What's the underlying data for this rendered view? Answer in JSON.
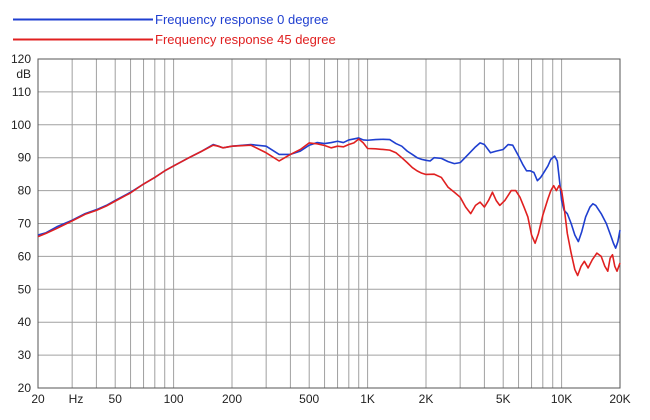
{
  "chart_data": {
    "type": "line",
    "title": "",
    "xlabel": "",
    "ylabel": "dB",
    "x_unit_label": "Hz",
    "x_scale": "log",
    "xlim": [
      20,
      20000
    ],
    "ylim": [
      20,
      120
    ],
    "grid": true,
    "legend_position": "top-left",
    "x_tick_labels": [
      {
        "value": 20,
        "label": "20"
      },
      {
        "value": 50,
        "label": "50"
      },
      {
        "value": 100,
        "label": "100"
      },
      {
        "value": 200,
        "label": "200"
      },
      {
        "value": 500,
        "label": "500"
      },
      {
        "value": 1000,
        "label": "1K"
      },
      {
        "value": 2000,
        "label": "2K"
      },
      {
        "value": 5000,
        "label": "5K"
      },
      {
        "value": 10000,
        "label": "10K"
      },
      {
        "value": 20000,
        "label": "20K"
      }
    ],
    "y_ticks": [
      20,
      30,
      40,
      50,
      60,
      70,
      80,
      90,
      100,
      110,
      120
    ],
    "series": [
      {
        "name": "Frequency response 0 degree",
        "color": "#1f3fd0",
        "points": [
          [
            20,
            66.5
          ],
          [
            22,
            67.2
          ],
          [
            25,
            69
          ],
          [
            30,
            71
          ],
          [
            35,
            73
          ],
          [
            40,
            74.2
          ],
          [
            45,
            75.5
          ],
          [
            50,
            77
          ],
          [
            60,
            79.5
          ],
          [
            70,
            82
          ],
          [
            80,
            84
          ],
          [
            90,
            86
          ],
          [
            100,
            87.5
          ],
          [
            120,
            90
          ],
          [
            140,
            92
          ],
          [
            160,
            94
          ],
          [
            170,
            93.5
          ],
          [
            180,
            93
          ],
          [
            200,
            93.5
          ],
          [
            250,
            94
          ],
          [
            300,
            93.5
          ],
          [
            350,
            91
          ],
          [
            400,
            91
          ],
          [
            450,
            92
          ],
          [
            500,
            93.8
          ],
          [
            550,
            94.6
          ],
          [
            600,
            94.3
          ],
          [
            650,
            94.6
          ],
          [
            700,
            95
          ],
          [
            750,
            94.6
          ],
          [
            800,
            95.4
          ],
          [
            850,
            95.7
          ],
          [
            900,
            96
          ],
          [
            950,
            95.4
          ],
          [
            1000,
            95.3
          ],
          [
            1100,
            95.5
          ],
          [
            1200,
            95.6
          ],
          [
            1300,
            95.5
          ],
          [
            1400,
            94.3
          ],
          [
            1500,
            93.5
          ],
          [
            1600,
            92
          ],
          [
            1700,
            91
          ],
          [
            1800,
            90
          ],
          [
            1900,
            89.5
          ],
          [
            2000,
            89.2
          ],
          [
            2100,
            89
          ],
          [
            2200,
            90
          ],
          [
            2400,
            89.8
          ],
          [
            2600,
            88.8
          ],
          [
            2800,
            88.2
          ],
          [
            3000,
            88.5
          ],
          [
            3300,
            91
          ],
          [
            3600,
            93.3
          ],
          [
            3800,
            94.5
          ],
          [
            4000,
            94
          ],
          [
            4300,
            91.5
          ],
          [
            4600,
            92
          ],
          [
            5000,
            92.5
          ],
          [
            5300,
            94
          ],
          [
            5600,
            93.8
          ],
          [
            6000,
            90.5
          ],
          [
            6300,
            88
          ],
          [
            6600,
            86
          ],
          [
            6900,
            86
          ],
          [
            7200,
            85.5
          ],
          [
            7500,
            83
          ],
          [
            7800,
            84
          ],
          [
            8000,
            85
          ],
          [
            8500,
            87.5
          ],
          [
            8800,
            89.5
          ],
          [
            9200,
            90.5
          ],
          [
            9500,
            89
          ],
          [
            9800,
            82
          ],
          [
            10000,
            77
          ],
          [
            10300,
            74
          ],
          [
            10700,
            73
          ],
          [
            11200,
            70
          ],
          [
            11700,
            66.5
          ],
          [
            12200,
            64.5
          ],
          [
            12700,
            67.5
          ],
          [
            13300,
            72
          ],
          [
            14000,
            75
          ],
          [
            14500,
            76
          ],
          [
            15000,
            75.5
          ],
          [
            16000,
            73
          ],
          [
            17000,
            70
          ],
          [
            18000,
            66
          ],
          [
            18500,
            64
          ],
          [
            19000,
            62.5
          ],
          [
            19500,
            64.5
          ],
          [
            20000,
            68
          ]
        ]
      },
      {
        "name": "Frequency response 45 degree",
        "color": "#e02020",
        "points": [
          [
            20,
            66
          ],
          [
            22,
            67
          ],
          [
            25,
            68.5
          ],
          [
            30,
            70.8
          ],
          [
            35,
            72.8
          ],
          [
            40,
            74
          ],
          [
            45,
            75.3
          ],
          [
            50,
            76.8
          ],
          [
            60,
            79.3
          ],
          [
            70,
            82
          ],
          [
            80,
            84
          ],
          [
            90,
            86
          ],
          [
            100,
            87.5
          ],
          [
            120,
            90
          ],
          [
            140,
            92
          ],
          [
            160,
            93.8
          ],
          [
            170,
            93.5
          ],
          [
            180,
            93
          ],
          [
            200,
            93.5
          ],
          [
            250,
            93.8
          ],
          [
            300,
            91.5
          ],
          [
            350,
            89
          ],
          [
            400,
            91
          ],
          [
            450,
            92.5
          ],
          [
            500,
            94.5
          ],
          [
            550,
            94.2
          ],
          [
            600,
            93.7
          ],
          [
            650,
            93
          ],
          [
            700,
            93.5
          ],
          [
            750,
            93.3
          ],
          [
            800,
            94
          ],
          [
            850,
            94.5
          ],
          [
            900,
            95.7
          ],
          [
            950,
            94.5
          ],
          [
            1000,
            92.8
          ],
          [
            1100,
            92.7
          ],
          [
            1200,
            92.5
          ],
          [
            1300,
            92.3
          ],
          [
            1400,
            91.5
          ],
          [
            1500,
            90
          ],
          [
            1600,
            88.5
          ],
          [
            1700,
            87
          ],
          [
            1800,
            86
          ],
          [
            1900,
            85.3
          ],
          [
            2000,
            84.9
          ],
          [
            2200,
            85
          ],
          [
            2400,
            84
          ],
          [
            2600,
            81
          ],
          [
            2800,
            79.5
          ],
          [
            3000,
            78
          ],
          [
            3200,
            75
          ],
          [
            3400,
            73
          ],
          [
            3600,
            75.5
          ],
          [
            3800,
            76.5
          ],
          [
            4000,
            75
          ],
          [
            4200,
            77
          ],
          [
            4400,
            79.5
          ],
          [
            4600,
            77
          ],
          [
            4800,
            75.5
          ],
          [
            5100,
            77
          ],
          [
            5500,
            80
          ],
          [
            5800,
            80
          ],
          [
            6100,
            78
          ],
          [
            6400,
            75
          ],
          [
            6700,
            72
          ],
          [
            7000,
            66.5
          ],
          [
            7300,
            64
          ],
          [
            7600,
            67
          ],
          [
            8000,
            72.5
          ],
          [
            8500,
            77.5
          ],
          [
            8800,
            80
          ],
          [
            9100,
            81.5
          ],
          [
            9400,
            80
          ],
          [
            9700,
            81.5
          ],
          [
            10000,
            80
          ],
          [
            10300,
            75
          ],
          [
            10700,
            67
          ],
          [
            11200,
            61
          ],
          [
            11700,
            56
          ],
          [
            12100,
            54.2
          ],
          [
            12600,
            57
          ],
          [
            13100,
            58.5
          ],
          [
            13700,
            56.5
          ],
          [
            14400,
            59
          ],
          [
            15200,
            61
          ],
          [
            16000,
            60
          ],
          [
            16700,
            57
          ],
          [
            17300,
            55.5
          ],
          [
            17800,
            59.5
          ],
          [
            18300,
            60.5
          ],
          [
            18800,
            57
          ],
          [
            19300,
            55.5
          ],
          [
            20000,
            58
          ]
        ]
      }
    ]
  }
}
